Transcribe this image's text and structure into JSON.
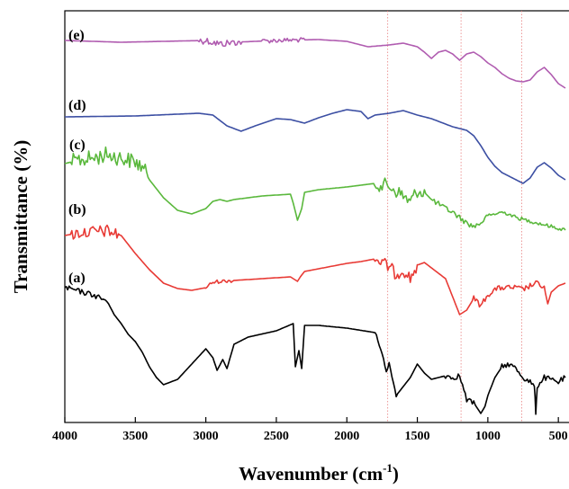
{
  "chart_data": {
    "type": "line",
    "title": "",
    "xlabel": "Wavenumber (cm",
    "xlabel_sup": "-1",
    "xlabel_close": ")",
    "ylabel": "Transmittance (%)",
    "xlim": [
      4000,
      450
    ],
    "x_reversed": true,
    "xticks": [
      "4000",
      "3500",
      "3000",
      "2500",
      "2000",
      "1500",
      "1000",
      "500"
    ],
    "xtick_values": [
      4000,
      3500,
      3000,
      2500,
      2000,
      1500,
      1000,
      500
    ],
    "y_scale": "offset-stacked, no numeric ticks",
    "grid": false,
    "reference_lines": [
      1710,
      1190,
      760
    ],
    "reference_line_color": "#e88080",
    "series": [
      {
        "name": "(e)",
        "color": "#b05cb0",
        "noise": [
          [
            3050,
            2750,
            4
          ],
          [
            2600,
            2300,
            2.5
          ]
        ],
        "points": [
          [
            4000,
            45
          ],
          [
            3600,
            47
          ],
          [
            3000,
            45
          ],
          [
            2900,
            49
          ],
          [
            2800,
            47
          ],
          [
            2500,
            45
          ],
          [
            2200,
            44
          ],
          [
            2000,
            46
          ],
          [
            1850,
            52
          ],
          [
            1700,
            50
          ],
          [
            1600,
            48
          ],
          [
            1500,
            52
          ],
          [
            1450,
            58
          ],
          [
            1400,
            65
          ],
          [
            1350,
            58
          ],
          [
            1300,
            56
          ],
          [
            1250,
            60
          ],
          [
            1200,
            67
          ],
          [
            1150,
            60
          ],
          [
            1100,
            58
          ],
          [
            1050,
            63
          ],
          [
            1000,
            70
          ],
          [
            950,
            75
          ],
          [
            900,
            82
          ],
          [
            850,
            87
          ],
          [
            800,
            90
          ],
          [
            750,
            91
          ],
          [
            700,
            89
          ],
          [
            650,
            80
          ],
          [
            600,
            75
          ],
          [
            550,
            83
          ],
          [
            500,
            93
          ],
          [
            450,
            98
          ]
        ]
      },
      {
        "name": "(d)",
        "color": "#3c4fa3",
        "noise": [],
        "points": [
          [
            4000,
            130
          ],
          [
            3500,
            129
          ],
          [
            3050,
            126
          ],
          [
            2950,
            128
          ],
          [
            2850,
            140
          ],
          [
            2750,
            146
          ],
          [
            2650,
            140
          ],
          [
            2500,
            132
          ],
          [
            2400,
            133
          ],
          [
            2300,
            137
          ],
          [
            2200,
            131
          ],
          [
            2100,
            126
          ],
          [
            2000,
            122
          ],
          [
            1900,
            124
          ],
          [
            1850,
            132
          ],
          [
            1800,
            128
          ],
          [
            1700,
            126
          ],
          [
            1600,
            123
          ],
          [
            1500,
            128
          ],
          [
            1400,
            132
          ],
          [
            1300,
            138
          ],
          [
            1250,
            141
          ],
          [
            1150,
            145
          ],
          [
            1100,
            151
          ],
          [
            1050,
            162
          ],
          [
            1000,
            175
          ],
          [
            950,
            185
          ],
          [
            900,
            192
          ],
          [
            800,
            200
          ],
          [
            750,
            204
          ],
          [
            700,
            198
          ],
          [
            650,
            186
          ],
          [
            600,
            181
          ],
          [
            550,
            187
          ],
          [
            500,
            195
          ],
          [
            450,
            200
          ]
        ]
      },
      {
        "name": "(c)",
        "color": "#5ab83c",
        "noise": [
          [
            3950,
            3420,
            9
          ],
          [
            1800,
            1450,
            8
          ],
          [
            1400,
            1000,
            3
          ],
          [
            1000,
            450,
            2
          ]
        ],
        "points": [
          [
            4000,
            182
          ],
          [
            3900,
            178
          ],
          [
            3800,
            176
          ],
          [
            3700,
            172
          ],
          [
            3600,
            176
          ],
          [
            3500,
            180
          ],
          [
            3450,
            186
          ],
          [
            3400,
            200
          ],
          [
            3300,
            220
          ],
          [
            3200,
            234
          ],
          [
            3100,
            238
          ],
          [
            3000,
            232
          ],
          [
            2950,
            224
          ],
          [
            2900,
            222
          ],
          [
            2850,
            224
          ],
          [
            2800,
            222
          ],
          [
            2600,
            218
          ],
          [
            2400,
            216
          ],
          [
            2380,
            226
          ],
          [
            2350,
            245
          ],
          [
            2320,
            232
          ],
          [
            2300,
            214
          ],
          [
            2200,
            211
          ],
          [
            2000,
            208
          ],
          [
            1900,
            206
          ],
          [
            1800,
            204
          ],
          [
            1700,
            207
          ],
          [
            1600,
            218
          ],
          [
            1550,
            225
          ],
          [
            1500,
            212
          ],
          [
            1450,
            214
          ],
          [
            1400,
            222
          ],
          [
            1300,
            232
          ],
          [
            1250,
            236
          ],
          [
            1200,
            242
          ],
          [
            1150,
            248
          ],
          [
            1100,
            252
          ],
          [
            1050,
            248
          ],
          [
            1000,
            240
          ],
          [
            950,
            238
          ],
          [
            900,
            236
          ],
          [
            850,
            238
          ],
          [
            800,
            242
          ],
          [
            750,
            244
          ],
          [
            700,
            246
          ],
          [
            600,
            250
          ],
          [
            500,
            254
          ],
          [
            450,
            256
          ]
        ]
      },
      {
        "name": "(b)",
        "color": "#e83a35",
        "noise": [
          [
            3950,
            3620,
            7
          ],
          [
            3000,
            2800,
            2
          ],
          [
            1800,
            1500,
            7
          ],
          [
            1100,
            600,
            3
          ]
        ],
        "points": [
          [
            4000,
            262
          ],
          [
            3900,
            259
          ],
          [
            3800,
            258
          ],
          [
            3700,
            257
          ],
          [
            3600,
            262
          ],
          [
            3500,
            282
          ],
          [
            3400,
            300
          ],
          [
            3300,
            315
          ],
          [
            3200,
            321
          ],
          [
            3100,
            323
          ],
          [
            3000,
            320
          ],
          [
            2950,
            314
          ],
          [
            2900,
            313
          ],
          [
            2800,
            312
          ],
          [
            2600,
            310
          ],
          [
            2400,
            308
          ],
          [
            2350,
            313
          ],
          [
            2330,
            308
          ],
          [
            2300,
            302
          ],
          [
            2200,
            299
          ],
          [
            2000,
            293
          ],
          [
            1900,
            291
          ],
          [
            1800,
            288
          ],
          [
            1750,
            292
          ],
          [
            1700,
            297
          ],
          [
            1650,
            305
          ],
          [
            1600,
            300
          ],
          [
            1550,
            310
          ],
          [
            1500,
            295
          ],
          [
            1450,
            292
          ],
          [
            1400,
            298
          ],
          [
            1300,
            310
          ],
          [
            1250,
            330
          ],
          [
            1200,
            350
          ],
          [
            1150,
            345
          ],
          [
            1100,
            332
          ],
          [
            1050,
            340
          ],
          [
            1000,
            328
          ],
          [
            950,
            322
          ],
          [
            900,
            320
          ],
          [
            800,
            320
          ],
          [
            750,
            322
          ],
          [
            700,
            318
          ],
          [
            650,
            315
          ],
          [
            600,
            320
          ],
          [
            575,
            338
          ],
          [
            550,
            325
          ],
          [
            500,
            318
          ],
          [
            450,
            315
          ]
        ]
      },
      {
        "name": "(a)",
        "color": "#000000",
        "noise": [
          [
            4000,
            3700,
            3
          ],
          [
            1800,
            1650,
            2
          ],
          [
            1300,
            1100,
            3
          ],
          [
            900,
            450,
            3
          ]
        ],
        "points": [
          [
            4000,
            320
          ],
          [
            3900,
            324
          ],
          [
            3800,
            328
          ],
          [
            3700,
            335
          ],
          [
            3650,
            350
          ],
          [
            3600,
            360
          ],
          [
            3550,
            372
          ],
          [
            3500,
            380
          ],
          [
            3450,
            392
          ],
          [
            3400,
            408
          ],
          [
            3350,
            420
          ],
          [
            3300,
            428
          ],
          [
            3200,
            422
          ],
          [
            3100,
            405
          ],
          [
            3000,
            388
          ],
          [
            2950,
            398
          ],
          [
            2920,
            412
          ],
          [
            2880,
            400
          ],
          [
            2850,
            410
          ],
          [
            2800,
            383
          ],
          [
            2700,
            375
          ],
          [
            2500,
            368
          ],
          [
            2380,
            360
          ],
          [
            2365,
            408
          ],
          [
            2340,
            390
          ],
          [
            2320,
            410
          ],
          [
            2300,
            362
          ],
          [
            2200,
            362
          ],
          [
            2000,
            365
          ],
          [
            1800,
            370
          ],
          [
            1750,
            392
          ],
          [
            1720,
            415
          ],
          [
            1700,
            404
          ],
          [
            1650,
            440
          ],
          [
            1600,
            430
          ],
          [
            1550,
            420
          ],
          [
            1500,
            405
          ],
          [
            1450,
            415
          ],
          [
            1400,
            422
          ],
          [
            1300,
            418
          ],
          [
            1250,
            420
          ],
          [
            1200,
            418
          ],
          [
            1150,
            445
          ],
          [
            1100,
            448
          ],
          [
            1050,
            460
          ],
          [
            1020,
            452
          ],
          [
            1000,
            440
          ],
          [
            950,
            420
          ],
          [
            900,
            408
          ],
          [
            850,
            405
          ],
          [
            800,
            410
          ],
          [
            750,
            420
          ],
          [
            700,
            425
          ],
          [
            670,
            430
          ],
          [
            660,
            458
          ],
          [
            650,
            430
          ],
          [
            600,
            420
          ],
          [
            500,
            425
          ],
          [
            450,
            420
          ]
        ]
      }
    ]
  }
}
